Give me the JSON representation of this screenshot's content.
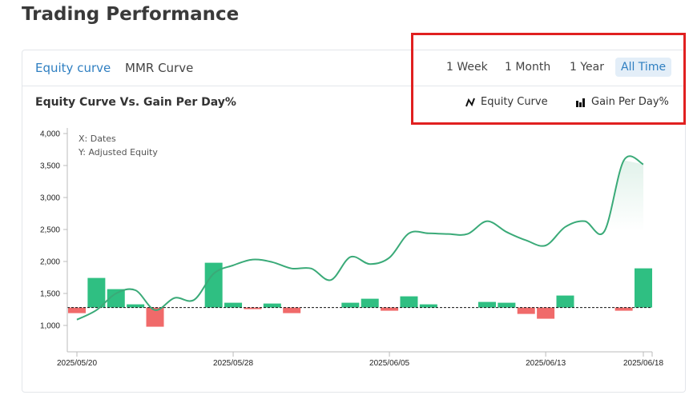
{
  "page": {
    "title": "Trading Performance"
  },
  "tabs": [
    {
      "label": "Equity curve",
      "active": true
    },
    {
      "label": "MMR Curve",
      "active": false
    }
  ],
  "ranges": [
    {
      "label": "1 Week"
    },
    {
      "label": "1 Month"
    },
    {
      "label": "1 Year"
    },
    {
      "label": "All Time",
      "active": true
    }
  ],
  "chart_header": {
    "title": "Equity Curve Vs. Gain Per Day%"
  },
  "legend": [
    {
      "label": "Equity Curve",
      "icon": "line-chart-icon"
    },
    {
      "label": "Gain Per Day%",
      "icon": "bar-chart-icon"
    }
  ],
  "colors": {
    "accent": "#2f7fc1",
    "line": "#3aaa78",
    "gain": "#2fbf82",
    "loss": "#f06a6a",
    "annotation": "#e02020"
  },
  "chart_data": {
    "type": "line+bar",
    "annotations": [
      "X: Dates",
      "Y: Adjusted Equity"
    ],
    "ylim": [
      700,
      4000
    ],
    "y_ticks": [
      "1,000",
      "1,500",
      "2,000",
      "2,500",
      "3,000",
      "3,500",
      "4,000"
    ],
    "y_tick_values": [
      1000,
      1500,
      2000,
      2500,
      3000,
      3500,
      4000
    ],
    "x_ticks": [
      "2025/05/20",
      "2025/05/28",
      "2025/06/05",
      "2025/06/13",
      "2025/06/18"
    ],
    "x_start": "2025/05/20",
    "x_end": "2025/06/18",
    "baseline_equity": 1280,
    "series": [
      {
        "name": "Equity Curve",
        "type": "line",
        "values": [
          1090,
          1240,
          1500,
          1550,
          1240,
          1430,
          1400,
          1810,
          1940,
          2030,
          1990,
          1890,
          1890,
          1710,
          2070,
          1960,
          2060,
          2440,
          2440,
          2430,
          2430,
          2630,
          2460,
          2330,
          2250,
          2540,
          2630,
          2470,
          3580,
          3520
        ]
      },
      {
        "name": "Gain Per Day%",
        "type": "bar",
        "values": [
          -0.7,
          3.7,
          2.3,
          0.4,
          -2.4,
          0,
          0,
          5.6,
          0.6,
          -0.2,
          0.5,
          -0.7,
          0,
          0,
          0.6,
          1.1,
          -0.4,
          1.4,
          0.4,
          0,
          0,
          0.7,
          0.6,
          -0.8,
          -1.4,
          1.5,
          0,
          0,
          -0.4,
          4.9
        ]
      }
    ]
  }
}
